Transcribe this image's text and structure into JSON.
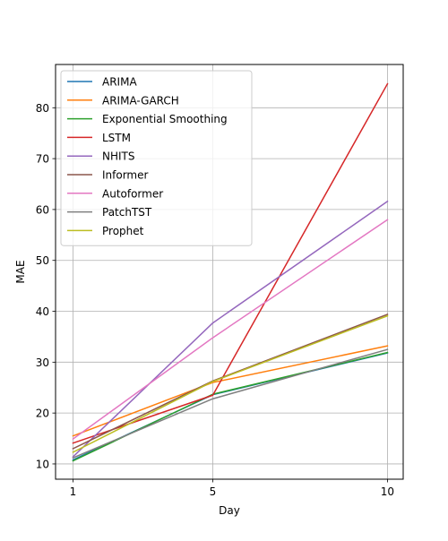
{
  "chart_data": {
    "type": "line",
    "title": "",
    "xlabel": "Day",
    "ylabel": "MAE",
    "x": [
      1,
      5,
      10
    ],
    "x_ticks": [
      "1",
      "5",
      "10"
    ],
    "xlim": [
      0.5,
      10.45
    ],
    "ylim": [
      7,
      88.5
    ],
    "y_ticks": [
      "10",
      "20",
      "30",
      "40",
      "50",
      "60",
      "70",
      "80"
    ],
    "grid": true,
    "legend_position": "top-left",
    "series": [
      {
        "name": "ARIMA",
        "color": "#1f77b4",
        "values": [
          10.8,
          23.6,
          31.8
        ]
      },
      {
        "name": "ARIMA-GARCH",
        "color": "#ff7f0e",
        "values": [
          15.5,
          26.0,
          33.2
        ]
      },
      {
        "name": "Exponential Smoothing",
        "color": "#2ca02c",
        "values": [
          10.6,
          23.7,
          31.9
        ]
      },
      {
        "name": "LSTM",
        "color": "#d62728",
        "values": [
          14.1,
          23.5,
          84.7
        ]
      },
      {
        "name": "NHITS",
        "color": "#9467bd",
        "values": [
          11.4,
          37.7,
          61.6
        ]
      },
      {
        "name": "Informer",
        "color": "#8c564b",
        "values": [
          13.0,
          26.3,
          39.4
        ]
      },
      {
        "name": "Autoformer",
        "color": "#e377c2",
        "values": [
          14.9,
          34.8,
          58.0
        ]
      },
      {
        "name": "PatchTST",
        "color": "#7f7f7f",
        "values": [
          11.2,
          22.8,
          32.5
        ]
      },
      {
        "name": "Prophet",
        "color": "#bcbd22",
        "values": [
          12.3,
          26.2,
          39.1
        ]
      }
    ]
  }
}
